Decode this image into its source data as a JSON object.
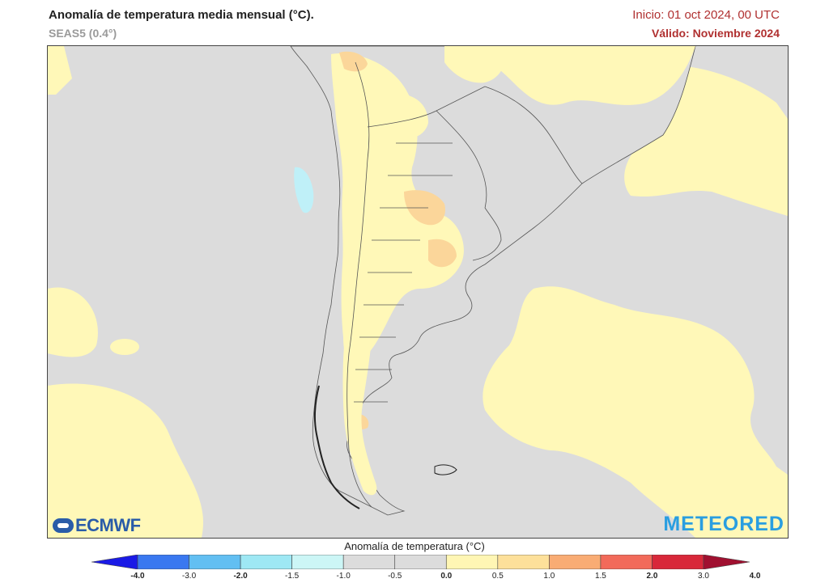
{
  "header": {
    "title": "Anomalía de temperatura media mensual (°C).",
    "model": "SEAS5 (0.4°)",
    "init": "Inicio: 01 oct 2024, 00 UTC",
    "valid": "Válido: Noviembre 2024"
  },
  "logos": {
    "left": "ECMWF",
    "right": "METEORED"
  },
  "colorbar": {
    "title": "Anomalía de temperatura (°C)",
    "ticks": [
      "-4.0",
      "-3.0",
      "-2.0",
      "-1.5",
      "-1.0",
      "-0.5",
      "0.0",
      "0.5",
      "1.0",
      "1.5",
      "2.0",
      "3.0",
      "4.0"
    ],
    "colors": [
      "#1a1ae6",
      "#3a78f0",
      "#62bff2",
      "#9ee8f4",
      "#ccf6f6",
      "#dcdcdc",
      "#dcdcdc",
      "#fff6b4",
      "#fde09a",
      "#f9ac74",
      "#f26a5a",
      "#d8283a",
      "#a01030"
    ],
    "map_colors": {
      "neutral": "#dcdcdc",
      "warm_light": "#fff8b8",
      "warm_medium": "#fbd69a",
      "cool_light": "#bff0f8",
      "border": "#555555"
    }
  }
}
